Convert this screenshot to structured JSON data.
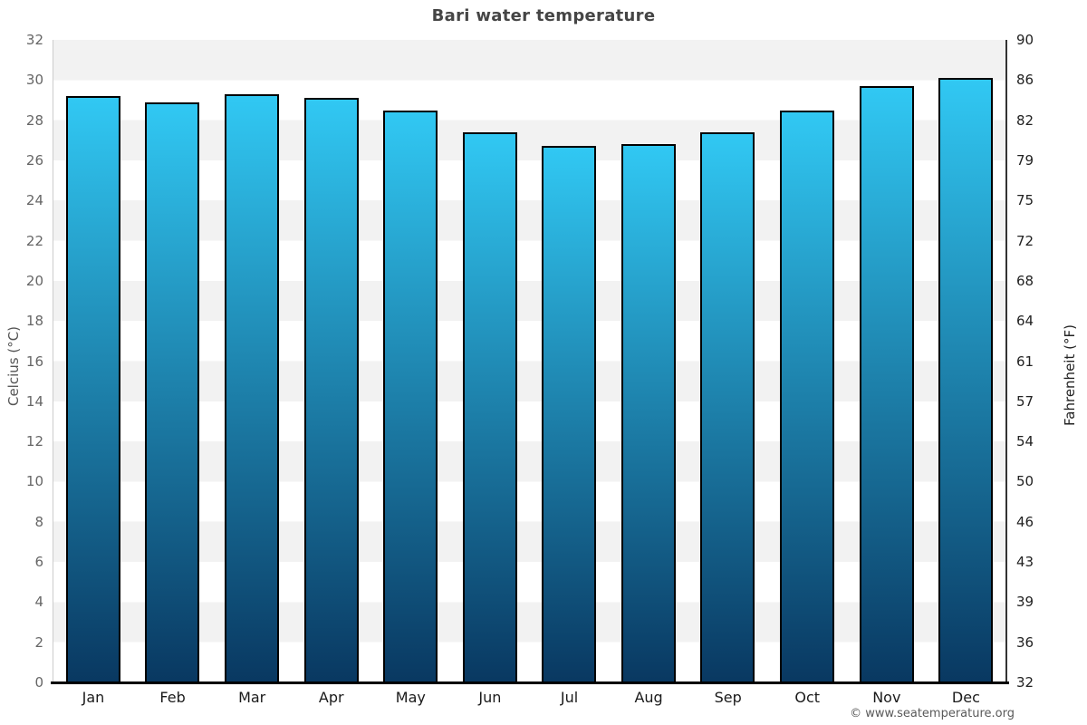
{
  "chart_data": {
    "type": "bar",
    "title": "Bari water temperature",
    "categories": [
      "Jan",
      "Feb",
      "Mar",
      "Apr",
      "May",
      "Jun",
      "Jul",
      "Aug",
      "Sep",
      "Oct",
      "Nov",
      "Dec"
    ],
    "values": [
      29.2,
      28.9,
      29.3,
      29.1,
      28.5,
      27.4,
      26.7,
      26.8,
      27.4,
      28.5,
      29.7,
      30.1
    ],
    "ylabel_left": "Celcius (°C)",
    "ylabel_right": "Fahrenheit (°F)",
    "ylim": [
      0,
      32
    ],
    "celsius_ticks": [
      32,
      30,
      28,
      26,
      24,
      22,
      20,
      18,
      16,
      14,
      12,
      10,
      8,
      6,
      4,
      2,
      0
    ],
    "fahrenheit_tick_labels": [
      "90",
      "86",
      "82",
      "79",
      "75",
      "72",
      "68",
      "64",
      "61",
      "57",
      "54",
      "50",
      "46",
      "43",
      "39",
      "36",
      "32"
    ],
    "grid": "banded-2-degree-stripes",
    "legend": "none",
    "colors": {
      "bar_gradient_top": "#31c8f3",
      "bar_gradient_bottom": "#093861",
      "bar_border": "#000000",
      "band_gray": "#f2f2f2",
      "band_white": "#ffffff",
      "axis_left_line": "#cccccc",
      "axis_right_line": "#333333",
      "axis_bottom_line": "#000000"
    }
  },
  "footer": {
    "text": "© www.seatemperature.org"
  }
}
